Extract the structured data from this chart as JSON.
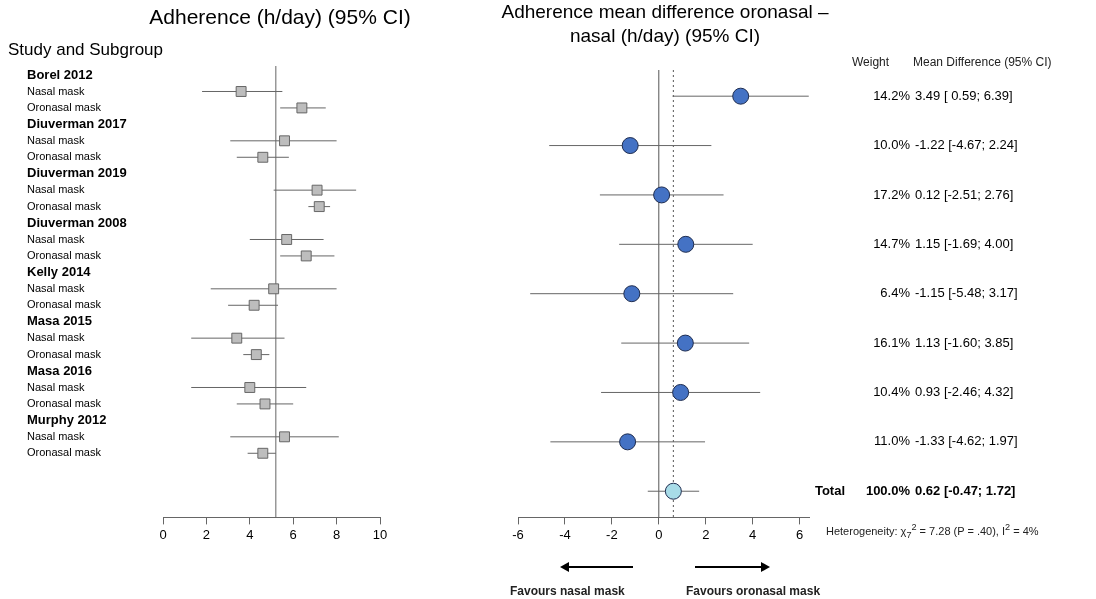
{
  "chart_data": [
    {
      "type": "scatter",
      "orientation": "horizontal",
      "title": "Adherence (h/day) (95% CI)",
      "ylabel": "Study and Subgroup",
      "categories": [
        "Borel 2012",
        "Nasal mask",
        "Oronasal mask",
        "Diuverman 2017",
        "Nasal mask",
        "Oronasal mask",
        "Diuverman 2019",
        "Nasal mask",
        "Oronasal mask",
        "Diuverman 2008",
        "Nasal mask",
        "Oronasal mask",
        "Kelly 2014",
        "Nasal mask",
        "Oronasal mask",
        "Masa 2015",
        "Nasal mask",
        "Oronasal mask",
        "Masa 2016",
        "Nasal mask",
        "Oronasal mask",
        "Murphy 2012",
        "Nasal mask",
        "Oronasal mask"
      ],
      "series": [
        {
          "color": "#bdbdbd",
          "values": [
            null,
            3.6,
            6.4,
            null,
            5.6,
            4.6,
            null,
            7.1,
            7.2,
            null,
            5.7,
            6.6,
            null,
            5.1,
            4.2,
            null,
            3.4,
            4.3,
            null,
            4.0,
            4.7,
            null,
            5.6,
            4.6
          ],
          "errors": [
            null,
            [
              1.8,
              5.5
            ],
            [
              5.4,
              7.5
            ],
            null,
            [
              3.1,
              8.0
            ],
            [
              3.4,
              5.8
            ],
            null,
            [
              5.1,
              8.9
            ],
            [
              6.7,
              7.7
            ],
            null,
            [
              4.0,
              7.4
            ],
            [
              5.4,
              7.9
            ],
            null,
            [
              2.2,
              8.0
            ],
            [
              3.0,
              5.3
            ],
            null,
            [
              1.3,
              5.6
            ],
            [
              3.7,
              4.9
            ],
            null,
            [
              1.3,
              6.6
            ],
            [
              3.4,
              6.0
            ],
            null,
            [
              3.1,
              8.1
            ],
            [
              3.9,
              5.2
            ]
          ]
        }
      ],
      "xlim": [
        0,
        10
      ],
      "xticks": [
        0,
        2,
        4,
        6,
        8,
        10
      ],
      "ref_lines": [
        {
          "axis": "x",
          "value": 5.2,
          "color": "#666666",
          "line_style": "solid"
        }
      ],
      "marker": "square",
      "grid": false
    },
    {
      "type": "scatter",
      "orientation": "horizontal",
      "title": "Adherence mean difference oronasal – nasal (h/day) (95% CI)",
      "categories": [
        null,
        null,
        null,
        null,
        null,
        null,
        null,
        null,
        "Total"
      ],
      "series": [
        {
          "colors": [
            "#4472c4",
            "#4472c4",
            "#4472c4",
            "#4472c4",
            "#4472c4",
            "#4472c4",
            "#4472c4",
            "#4472c4",
            "#a8dce8"
          ],
          "values": [
            3.49,
            -1.22,
            0.12,
            1.15,
            -1.15,
            1.13,
            0.93,
            -1.33,
            0.62
          ],
          "errors": [
            [
              0.59,
              6.39
            ],
            [
              -4.67,
              2.24
            ],
            [
              -2.51,
              2.76
            ],
            [
              -1.69,
              4.0
            ],
            [
              -5.48,
              3.17
            ],
            [
              -1.6,
              3.85
            ],
            [
              -2.46,
              4.32
            ],
            [
              -4.62,
              1.97
            ],
            [
              -0.47,
              1.72
            ]
          ],
          "value_labels": [
            "14.2%  3.49 [ 0.59; 6.39]",
            "10.0%  -1.22 [-4.67; 2.24]",
            "17.2%  0.12 [-2.51; 2.76]",
            "14.7%  1.15 [-1.69; 4.00]",
            "6.4%  -1.15 [-5.48; 3.17]",
            "16.1%  1.13 [-1.60; 3.85]",
            "10.4%  0.93 [-2.46; 4.32]",
            "11.0%  -1.33 [-4.62; 1.97]",
            "100.0%  0.62 [-0.47; 1.72]"
          ]
        }
      ],
      "xlim": [
        -6,
        6.4
      ],
      "xticks": [
        -6,
        -4,
        -2,
        0,
        2,
        4,
        6
      ],
      "ref_lines": [
        {
          "axis": "x",
          "value": 0,
          "color": "#555555",
          "line_style": "solid"
        },
        {
          "axis": "x",
          "value": 0.62,
          "color": "#555555",
          "line_style": "dotted"
        }
      ],
      "annotations": [
        "Weight",
        "Mean Difference (95% CI)",
        "Heterogeneity: χ$_{7}$$^{2}$ = 7.28 (P = .40), I$^{2}$ = 4%",
        "Favours nasal mask",
        "Favours oronasal mask"
      ],
      "marker": "circle",
      "grid": false
    }
  ]
}
